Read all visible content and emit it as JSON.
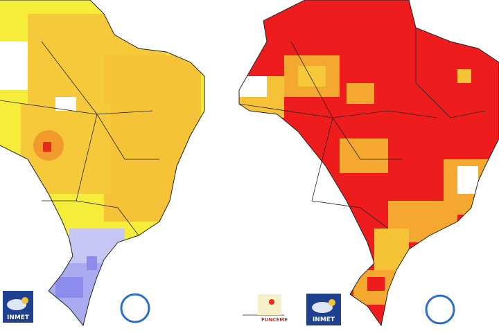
{
  "left_map": {
    "logos": [
      "INMET"
    ]
  },
  "right_map": {
    "logos": [
      "FUNCEME",
      "INMET"
    ]
  }
}
